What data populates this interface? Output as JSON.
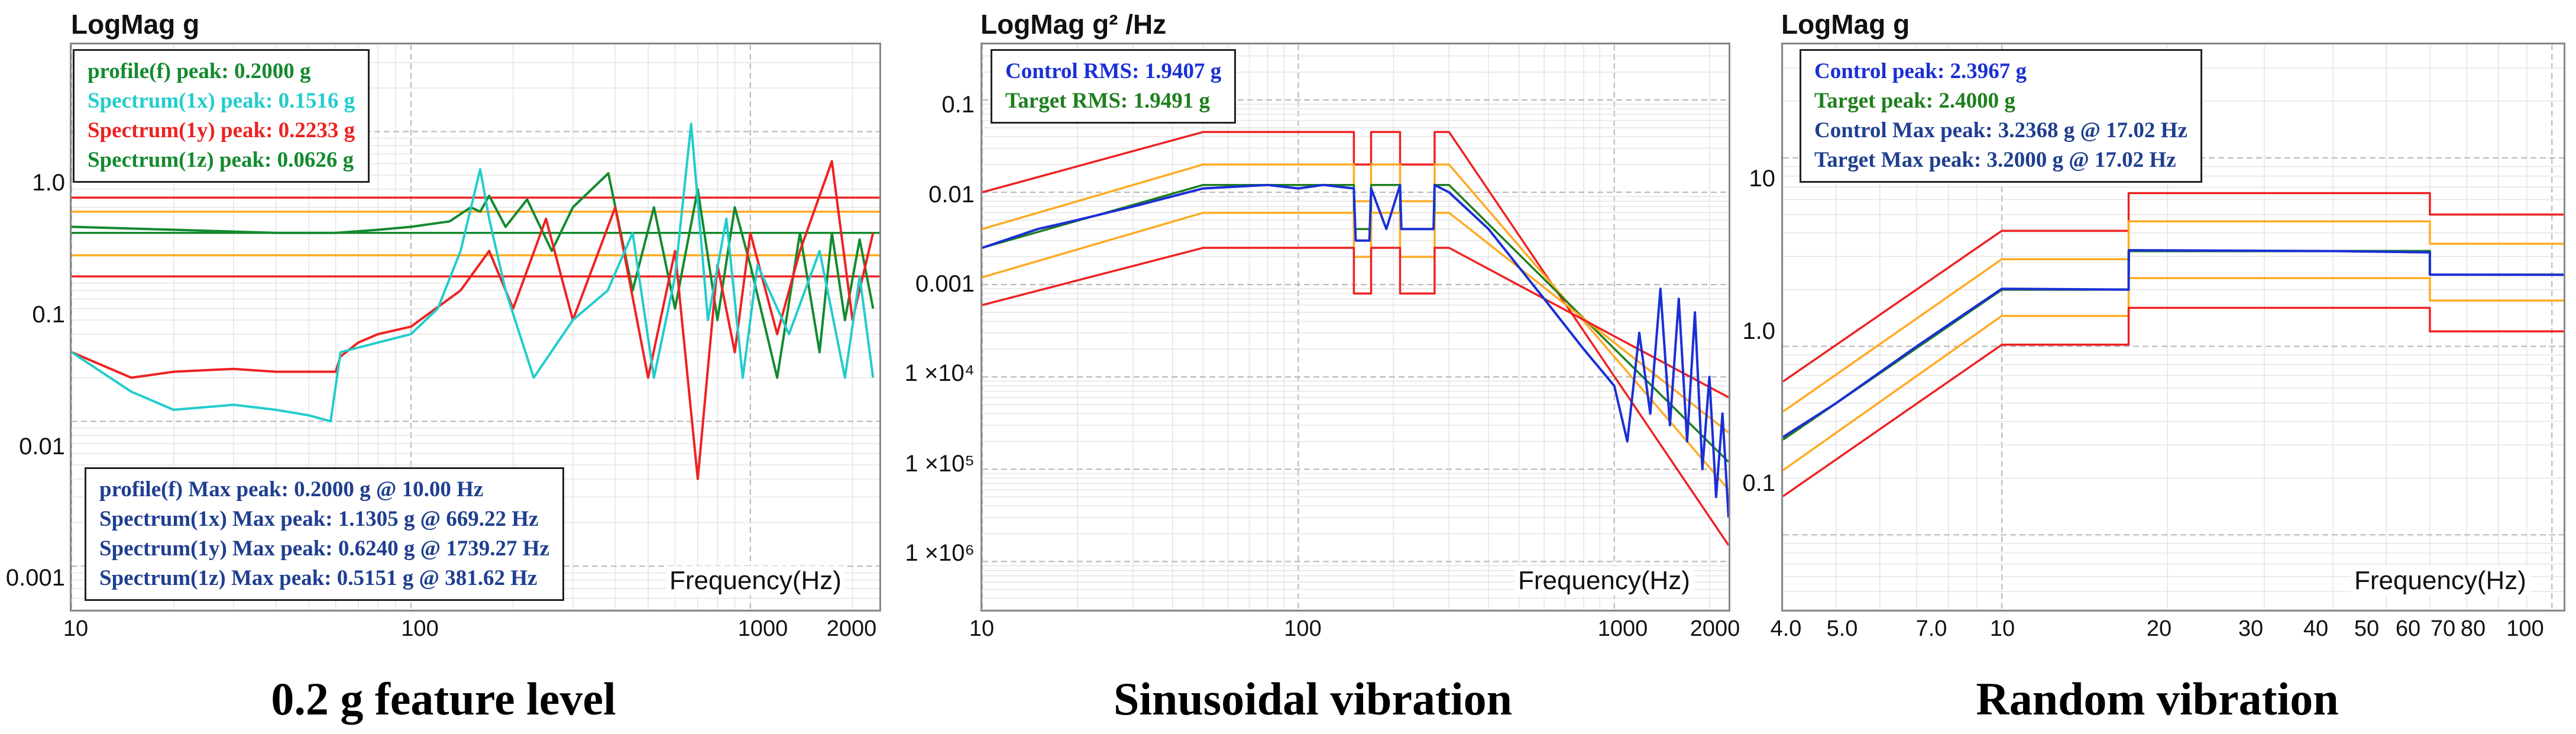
{
  "colors": {
    "red": "#ee2222",
    "orange": "#ffaa22",
    "green": "#138a2e",
    "cyan": "#22cccc",
    "blue": "#1a2fd6",
    "navy": "#1f3f8f",
    "dkgreen": "#1e7f1e"
  },
  "chart_data": [
    {
      "type": "line",
      "caption": "0.2 g feature level",
      "ylabel": "LogMag g",
      "xlabel": "Frequency(Hz)",
      "xscale": "log",
      "yscale": "log",
      "xlim": [
        10,
        2400
      ],
      "ylim": [
        0.0005,
        4
      ],
      "xticks": [
        10,
        100,
        1000,
        2000
      ],
      "xtick_labels": [
        "10",
        "100",
        "1000",
        "2000"
      ],
      "yticks": [
        1.0,
        0.1,
        0.01,
        0.001
      ],
      "ytick_labels": [
        "1.0",
        "0.1",
        "0.01",
        "0.001"
      ],
      "grid": true,
      "legend": [
        {
          "text": "profile(f) peak: 0.2000 g",
          "color": "#138a2e"
        },
        {
          "text": "Spectrum(1x) peak: 0.1516 g",
          "color": "#22cccc"
        },
        {
          "text": "Spectrum(1y) peak: 0.2233 g",
          "color": "#ee2222"
        },
        {
          "text": "Spectrum(1z) peak: 0.0626 g",
          "color": "#138a2e"
        }
      ],
      "legend_position": "top-left",
      "annotation": [
        "profile(f) Max peak: 0.2000 g @ 10.00 Hz",
        "Spectrum(1x) Max peak: 1.1305 g @ 669.22 Hz",
        "Spectrum(1y) Max peak: 0.6240 g @ 1739.27 Hz",
        "Spectrum(1z) Max peak: 0.5151 g @ 381.62 Hz"
      ],
      "annotation_color": "#1f3f8f",
      "annotation_position": "bottom-left",
      "series": [
        {
          "color": "#ee2222",
          "x": [
            10,
            2400
          ],
          "y": [
            0.35,
            0.35
          ],
          "style": "flat"
        },
        {
          "color": "#ffaa22",
          "x": [
            10,
            2400
          ],
          "y": [
            0.28,
            0.28
          ],
          "style": "flat"
        },
        {
          "color": "#138a2e",
          "x": [
            10,
            2400
          ],
          "y": [
            0.2,
            0.2
          ],
          "style": "flat"
        },
        {
          "color": "#ffaa22",
          "x": [
            10,
            2400
          ],
          "y": [
            0.14,
            0.14
          ],
          "style": "flat"
        },
        {
          "color": "#ee2222",
          "x": [
            10,
            2400
          ],
          "y": [
            0.1,
            0.1
          ],
          "style": "flat"
        },
        {
          "name": "Spectrum(1z)",
          "color": "#138a2e",
          "x": [
            10,
            20,
            40,
            60,
            80,
            100,
            130,
            150,
            160,
            170,
            190,
            220,
            260,
            300,
            381.62,
            450,
            520,
            600,
            700,
            800,
            900,
            1000,
            1200,
            1400,
            1600,
            1739,
            1900,
            2100,
            2300
          ],
          "y": [
            0.22,
            0.21,
            0.2,
            0.2,
            0.21,
            0.22,
            0.24,
            0.3,
            0.28,
            0.36,
            0.22,
            0.34,
            0.15,
            0.3,
            0.5151,
            0.08,
            0.3,
            0.06,
            0.4,
            0.05,
            0.3,
            0.12,
            0.02,
            0.2,
            0.03,
            0.2,
            0.05,
            0.18,
            0.06
          ]
        },
        {
          "name": "Spectrum(1y)",
          "color": "#ee2222",
          "x": [
            10,
            15,
            20,
            30,
            40,
            60,
            62,
            70,
            80,
            100,
            140,
            170,
            200,
            250,
            300,
            400,
            500,
            600,
            700,
            800,
            900,
            1000,
            1200,
            1400,
            1739.27,
            2000,
            2300
          ],
          "y": [
            0.03,
            0.02,
            0.022,
            0.023,
            0.022,
            0.022,
            0.028,
            0.035,
            0.04,
            0.045,
            0.08,
            0.15,
            0.06,
            0.25,
            0.05,
            0.3,
            0.02,
            0.15,
            0.004,
            0.12,
            0.03,
            0.2,
            0.04,
            0.15,
            0.624,
            0.05,
            0.2
          ]
        },
        {
          "name": "Spectrum(1x)",
          "color": "#22cccc",
          "x": [
            10,
            15,
            20,
            30,
            40,
            50,
            58,
            62,
            80,
            100,
            120,
            140,
            160,
            170,
            190,
            230,
            300,
            380,
            450,
            520,
            600,
            669.22,
            750,
            850,
            950,
            1050,
            1300,
            1600,
            1900,
            2100,
            2300
          ],
          "y": [
            0.03,
            0.016,
            0.012,
            0.013,
            0.012,
            0.011,
            0.01,
            0.03,
            0.035,
            0.04,
            0.06,
            0.15,
            0.55,
            0.25,
            0.08,
            0.02,
            0.05,
            0.08,
            0.2,
            0.02,
            0.1,
            1.1305,
            0.05,
            0.25,
            0.02,
            0.12,
            0.04,
            0.15,
            0.02,
            0.1,
            0.02
          ]
        }
      ]
    },
    {
      "type": "line",
      "caption": "Sinusoidal vibration",
      "ylabel": "LogMag g² /Hz",
      "xlabel": "Frequency(Hz)",
      "xscale": "log",
      "yscale": "log",
      "xlim": [
        10,
        2300
      ],
      "ylim": [
        3e-07,
        0.4
      ],
      "xticks": [
        10,
        100,
        1000,
        2000
      ],
      "xtick_labels": [
        "10",
        "100",
        "1000",
        "2000"
      ],
      "yticks": [
        0.1,
        0.01,
        0.001,
        0.0001,
        1e-05,
        1e-06
      ],
      "ytick_labels": [
        "0.1",
        "0.01",
        "0.001",
        "1 ×10⁴",
        "1 ×10⁵",
        "1 ×10⁶"
      ],
      "grid": true,
      "legend": [
        {
          "text": "Control RMS: 1.9407 g",
          "color": "#1a2fd6"
        },
        {
          "text": "Target RMS: 1.9491 g",
          "color": "#1e7f1e"
        }
      ],
      "legend_position": "top-left",
      "series": [
        {
          "color": "#ee2222",
          "x": [
            10,
            50,
            150,
            150,
            170,
            170,
            210,
            210,
            270,
            270,
            300,
            2300
          ],
          "y": [
            0.01,
            0.045,
            0.045,
            0.02,
            0.02,
            0.045,
            0.045,
            0.02,
            0.02,
            0.045,
            0.045,
            1.5e-06
          ]
        },
        {
          "color": "#ffaa22",
          "x": [
            10,
            50,
            150,
            150,
            170,
            170,
            210,
            210,
            270,
            270,
            300,
            2300
          ],
          "y": [
            0.004,
            0.02,
            0.02,
            0.008,
            0.008,
            0.02,
            0.02,
            0.008,
            0.008,
            0.02,
            0.02,
            6e-06
          ]
        },
        {
          "color": "#1e7f1e",
          "x": [
            10,
            50,
            150,
            150,
            170,
            170,
            210,
            210,
            270,
            270,
            300,
            2300
          ],
          "y": [
            0.0025,
            0.012,
            0.012,
            0.004,
            0.004,
            0.012,
            0.012,
            0.004,
            0.004,
            0.012,
            0.012,
            1.2e-05
          ]
        },
        {
          "color": "#ffaa22",
          "x": [
            10,
            50,
            150,
            150,
            170,
            170,
            210,
            210,
            270,
            270,
            300,
            2300
          ],
          "y": [
            0.0012,
            0.006,
            0.006,
            0.002,
            0.002,
            0.006,
            0.006,
            0.002,
            0.002,
            0.006,
            0.006,
            2.5e-05
          ]
        },
        {
          "color": "#ee2222",
          "x": [
            10,
            50,
            150,
            150,
            170,
            170,
            210,
            210,
            270,
            270,
            300,
            2300
          ],
          "y": [
            0.0006,
            0.0025,
            0.0025,
            0.0008,
            0.0008,
            0.0025,
            0.0025,
            0.0008,
            0.0008,
            0.0025,
            0.0025,
            6e-05
          ]
        },
        {
          "name": "Control",
          "color": "#1a2fd6",
          "x": [
            10,
            15,
            20,
            30,
            50,
            80,
            100,
            120,
            150,
            152,
            168,
            170,
            190,
            210,
            212,
            268,
            270,
            300,
            400,
            600,
            800,
            1000,
            1100,
            1200,
            1300,
            1400,
            1500,
            1600,
            1700,
            1800,
            1900,
            2000,
            2100,
            2200,
            2300
          ],
          "y": [
            0.0025,
            0.004,
            0.005,
            0.007,
            0.011,
            0.012,
            0.011,
            0.012,
            0.011,
            0.003,
            0.003,
            0.011,
            0.004,
            0.012,
            0.004,
            0.004,
            0.012,
            0.01,
            0.004,
            0.0007,
            0.0002,
            8e-05,
            2e-05,
            0.0003,
            4e-05,
            0.0009,
            3e-05,
            0.0007,
            2e-05,
            0.0005,
            1e-05,
            0.0001,
            5e-06,
            4e-05,
            3e-06
          ]
        }
      ]
    },
    {
      "type": "line",
      "caption": "Random vibration",
      "ylabel": "LogMag g",
      "xlabel": "Frequency(Hz)",
      "xscale": "log",
      "yscale": "log",
      "xlim": [
        4,
        105
      ],
      "ylim": [
        0.04,
        40
      ],
      "xticks": [
        4,
        5,
        7,
        10,
        20,
        30,
        40,
        50,
        60,
        70,
        80,
        100
      ],
      "xtick_labels": [
        "4.0",
        "5.0",
        "7.0",
        "10",
        "20",
        "30",
        "40",
        "50",
        "60",
        "70",
        "80",
        "100"
      ],
      "yticks": [
        10,
        1,
        0.1
      ],
      "ytick_labels": [
        "10",
        "1.0",
        "0.1"
      ],
      "grid": true,
      "legend": [
        {
          "text": "Control peak: 2.3967 g",
          "color": "#1a2fd6"
        },
        {
          "text": "Target peak: 2.4000 g",
          "color": "#1e7f1e"
        },
        {
          "text": "Control Max peak: 3.2368 g @ 17.02 Hz",
          "color": "#1f3f8f"
        },
        {
          "text": "Target Max peak: 3.2000 g @ 17.02 Hz",
          "color": "#1f3f8f"
        }
      ],
      "legend_position": "top-left",
      "series": [
        {
          "color": "#ee2222",
          "x": [
            4,
            10,
            17,
            17,
            60,
            60,
            105
          ],
          "y": [
            0.65,
            4.1,
            4.1,
            6.5,
            6.5,
            5.0,
            5.0
          ]
        },
        {
          "color": "#ffaa22",
          "x": [
            4,
            10,
            17,
            17,
            60,
            60,
            105
          ],
          "y": [
            0.45,
            2.9,
            2.9,
            4.6,
            4.6,
            3.5,
            3.5
          ]
        },
        {
          "color": "#ffaa22",
          "x": [
            4,
            10,
            17,
            17,
            60,
            60,
            105
          ],
          "y": [
            0.22,
            1.45,
            1.45,
            2.3,
            2.3,
            1.75,
            1.75
          ]
        },
        {
          "color": "#ee2222",
          "x": [
            4,
            10,
            17,
            17,
            60,
            60,
            105
          ],
          "y": [
            0.16,
            1.02,
            1.02,
            1.6,
            1.6,
            1.2,
            1.2
          ]
        },
        {
          "name": "Target",
          "color": "#1e7f1e",
          "x": [
            4,
            10,
            17,
            17,
            60,
            60,
            105
          ],
          "y": [
            0.32,
            2.0,
            2.0,
            3.2,
            3.2,
            2.4,
            2.4
          ]
        },
        {
          "name": "Control",
          "color": "#1a2fd6",
          "x": [
            4,
            5,
            7,
            10,
            17,
            17.02,
            40,
            60,
            60,
            105
          ],
          "y": [
            0.33,
            0.5,
            1.0,
            2.02,
            2.0,
            3.2368,
            3.2,
            3.15,
            2.4,
            2.3967
          ]
        }
      ]
    }
  ]
}
